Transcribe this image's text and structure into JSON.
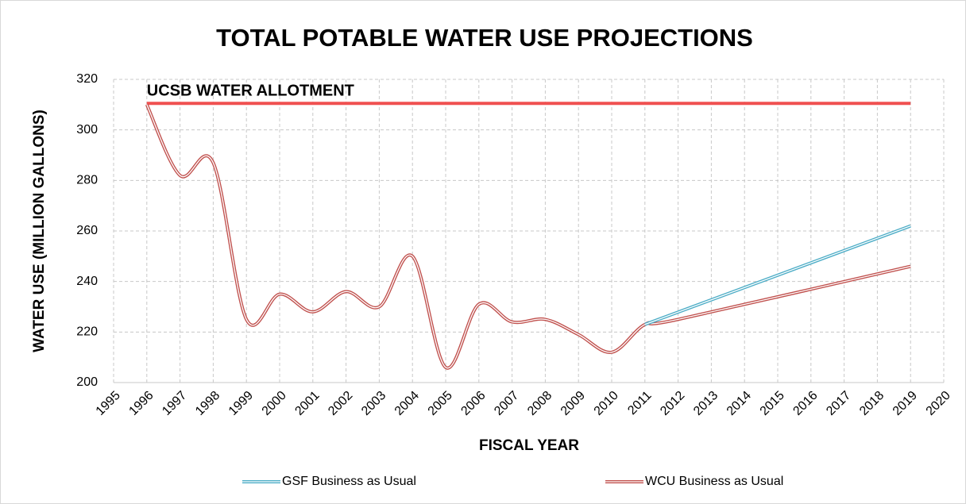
{
  "chart_data": {
    "type": "line",
    "title": "TOTAL POTABLE WATER USE PROJECTIONS",
    "x_label": "FISCAL YEAR",
    "y_label": "WATER USE (MILLION GALLONS)",
    "xlim": [
      1995,
      2020
    ],
    "xticks": [
      1995,
      1996,
      1997,
      1998,
      1999,
      2000,
      2001,
      2002,
      2003,
      2004,
      2005,
      2006,
      2007,
      2008,
      2009,
      2010,
      2011,
      2012,
      2013,
      2014,
      2015,
      2016,
      2017,
      2018,
      2019,
      2020
    ],
    "ylim": [
      200,
      320
    ],
    "yticks": [
      200,
      220,
      240,
      260,
      280,
      300,
      320
    ],
    "grid": true,
    "legend": "bottom",
    "series": [
      {
        "name": "GSF Business as Usual",
        "color": "#4bacc6",
        "x": [
          2011,
          2019
        ],
        "values": [
          223,
          262
        ]
      },
      {
        "name": "WCU Business as Usual",
        "color": "#c0504d",
        "x": [
          1996,
          1997,
          1998,
          1999,
          2000,
          2001,
          2002,
          2003,
          2004,
          2005,
          2006,
          2007,
          2008,
          2009,
          2010,
          2011,
          2012,
          2019
        ],
        "values": [
          310,
          282,
          287,
          225,
          235,
          228,
          236,
          230,
          250,
          206,
          231,
          224,
          225,
          219,
          212,
          223,
          225,
          246
        ]
      }
    ],
    "annotations": [
      {
        "label": "UCSB WATER ALLOTMENT",
        "value": 310.5,
        "x": [
          1996,
          2019
        ],
        "color": "#f05050"
      }
    ]
  }
}
